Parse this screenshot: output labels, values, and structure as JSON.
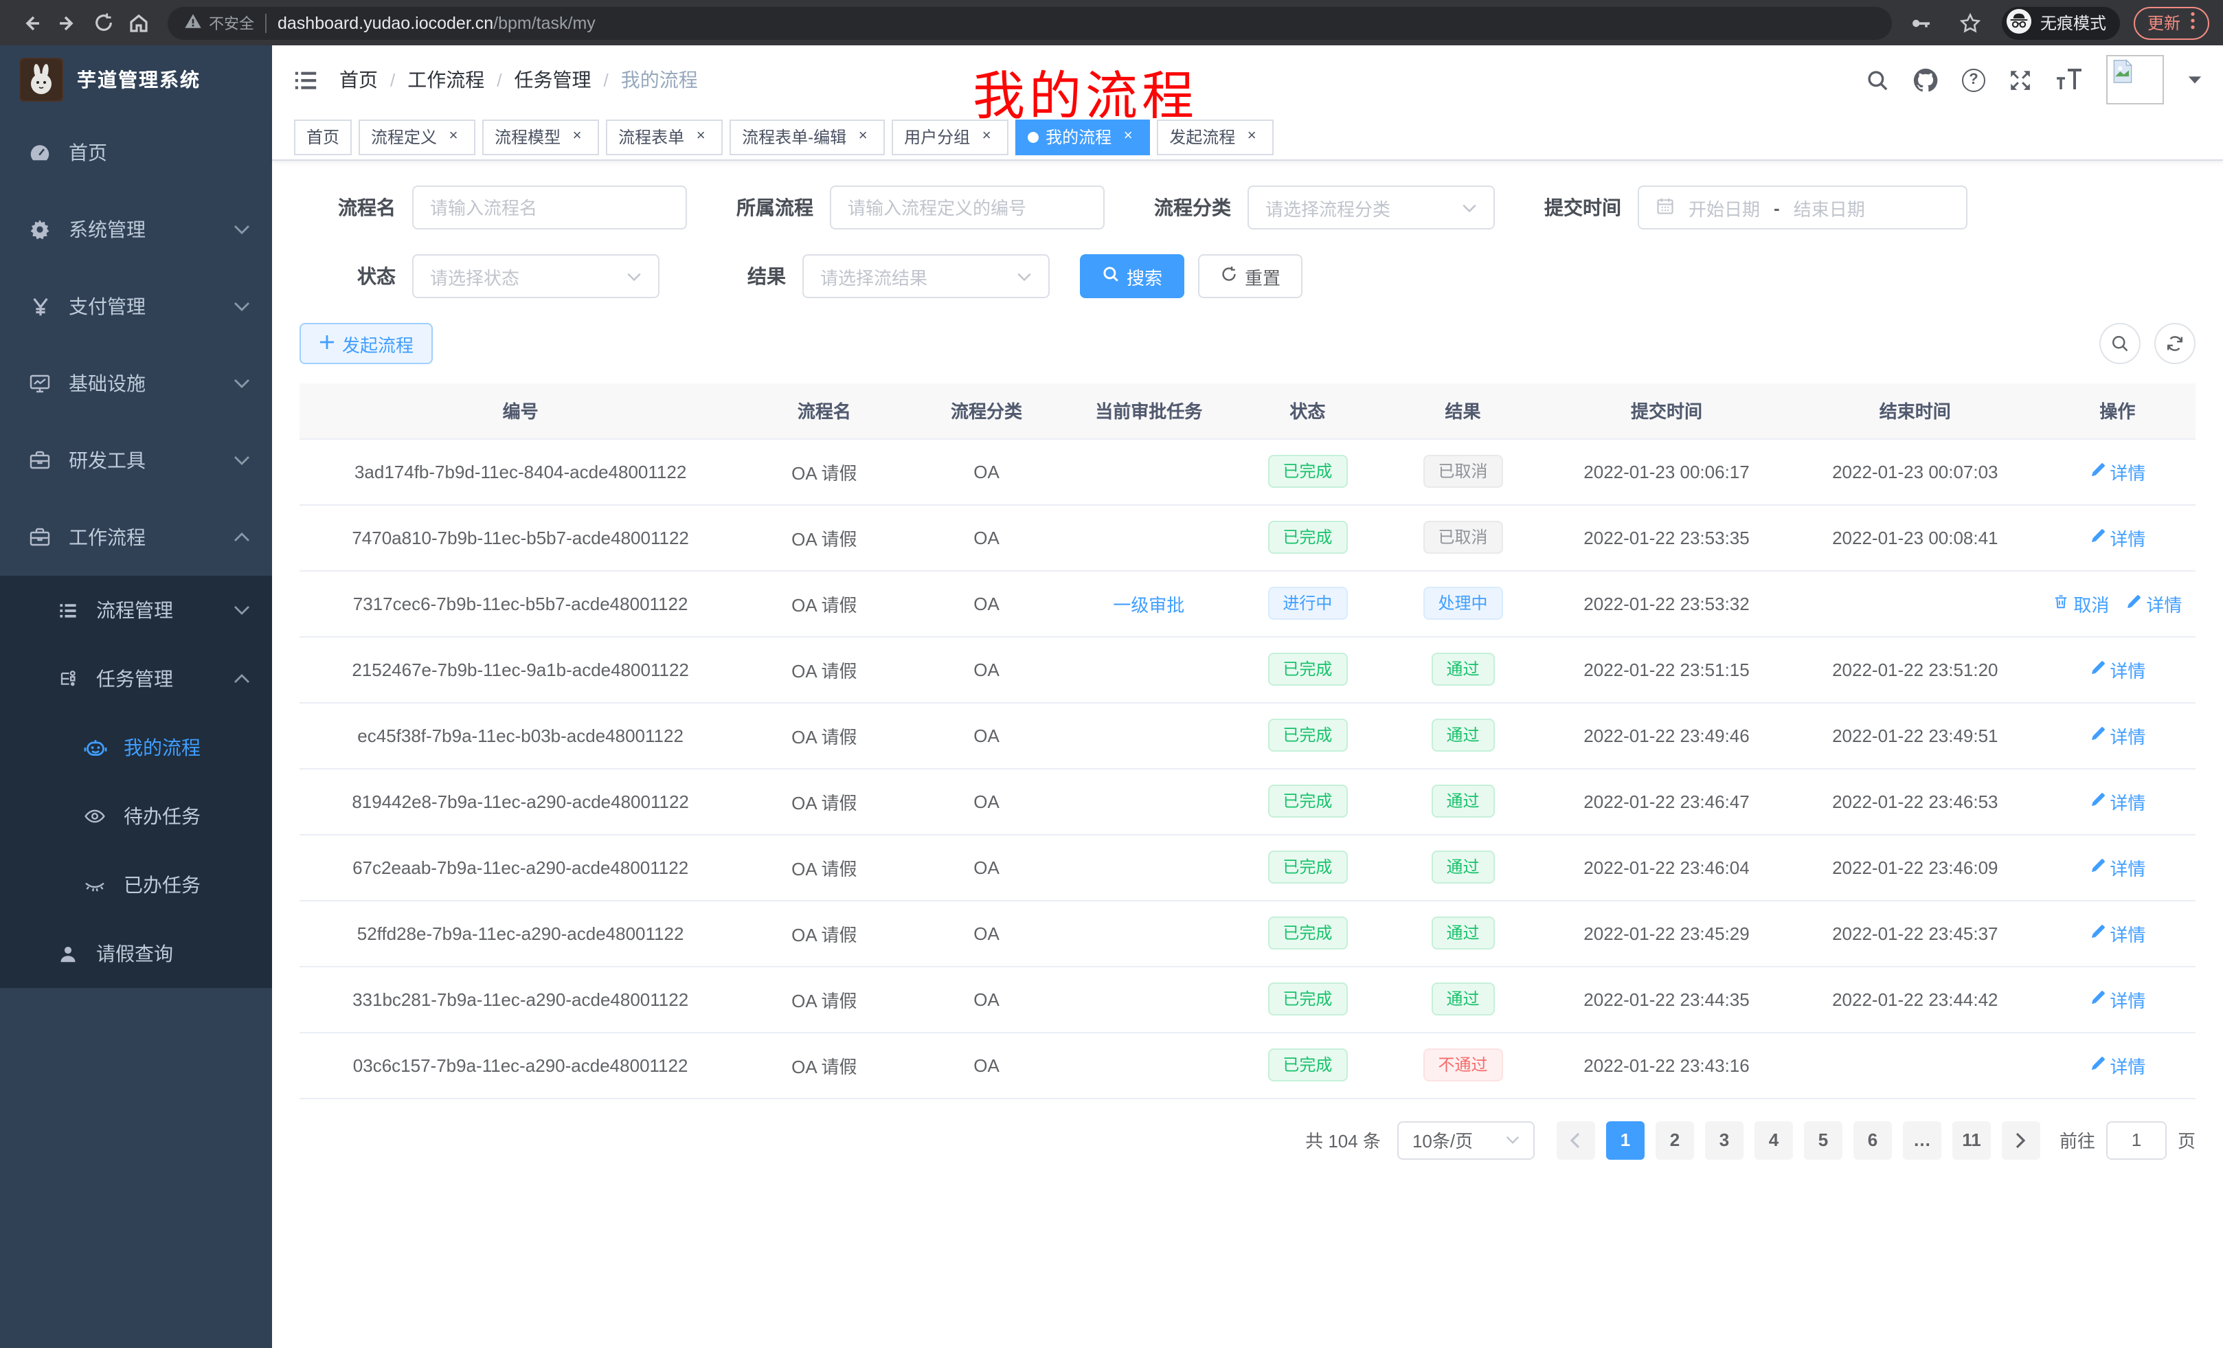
{
  "browser": {
    "security_label": "不安全",
    "url_host": "dashboard.yudao.iocoder.cn",
    "url_path": "/bpm/task/my",
    "incognito_label": "无痕模式",
    "update_label": "更新"
  },
  "sidebar": {
    "title": "芋道管理系统",
    "items": [
      {
        "key": "home",
        "label": "首页",
        "icon": "dashboard-icon",
        "level": 1,
        "chevron": "",
        "active": false
      },
      {
        "key": "system",
        "label": "系统管理",
        "icon": "gear-icon",
        "level": 1,
        "chevron": "down",
        "active": false
      },
      {
        "key": "payment",
        "label": "支付管理",
        "icon": "yen-icon",
        "level": 1,
        "chevron": "down",
        "active": false
      },
      {
        "key": "infra",
        "label": "基础设施",
        "icon": "monitor-icon",
        "level": 1,
        "chevron": "down",
        "active": false
      },
      {
        "key": "devtools",
        "label": "研发工具",
        "icon": "toolbox-icon",
        "level": 1,
        "chevron": "down",
        "active": false
      },
      {
        "key": "workflow",
        "label": "工作流程",
        "icon": "briefcase-icon",
        "level": 1,
        "chevron": "up",
        "active": false
      },
      {
        "key": "process-mgmt",
        "label": "流程管理",
        "icon": "list-icon",
        "level": 2,
        "chevron": "down",
        "active": false
      },
      {
        "key": "task-mgmt",
        "label": "任务管理",
        "icon": "flow-icon",
        "level": 2,
        "chevron": "up",
        "active": false
      },
      {
        "key": "my-process",
        "label": "我的流程",
        "icon": "robot-icon",
        "level": 3,
        "chevron": "",
        "active": true
      },
      {
        "key": "todo-tasks",
        "label": "待办任务",
        "icon": "eye-icon",
        "level": 3,
        "chevron": "",
        "active": false
      },
      {
        "key": "done-tasks",
        "label": "已办任务",
        "icon": "eye-closed-icon",
        "level": 3,
        "chevron": "",
        "active": false
      },
      {
        "key": "leave-query",
        "label": "请假查询",
        "icon": "user-icon",
        "level": 2,
        "chevron": "",
        "active": false
      }
    ]
  },
  "navbar": {
    "breadcrumb": [
      "首页",
      "工作流程",
      "任务管理",
      "我的流程"
    ],
    "annotation": "我的流程"
  },
  "tabs": [
    {
      "label": "首页",
      "closable": false,
      "active": false
    },
    {
      "label": "流程定义",
      "closable": true,
      "active": false
    },
    {
      "label": "流程模型",
      "closable": true,
      "active": false
    },
    {
      "label": "流程表单",
      "closable": true,
      "active": false
    },
    {
      "label": "流程表单-编辑",
      "closable": true,
      "active": false
    },
    {
      "label": "用户分组",
      "closable": true,
      "active": false
    },
    {
      "label": "我的流程",
      "closable": true,
      "active": true
    },
    {
      "label": "发起流程",
      "closable": true,
      "active": false
    }
  ],
  "filter": {
    "name_label": "流程名",
    "name_placeholder": "请输入流程名",
    "definition_label": "所属流程",
    "definition_placeholder": "请输入流程定义的编号",
    "category_label": "流程分类",
    "category_placeholder": "请选择流程分类",
    "time_label": "提交时间",
    "start_placeholder": "开始日期",
    "range_separator": "-",
    "end_placeholder": "结束日期",
    "status_label": "状态",
    "status_placeholder": "请选择状态",
    "result_label": "结果",
    "result_placeholder": "请选择流结果",
    "search_label": "搜索",
    "reset_label": "重置"
  },
  "toolbar": {
    "create_label": "发起流程"
  },
  "table": {
    "headers": [
      "编号",
      "流程名",
      "流程分类",
      "当前审批任务",
      "状态",
      "结果",
      "提交时间",
      "结束时间",
      "操作"
    ],
    "rows": [
      {
        "id": "3ad174fb-7b9d-11ec-8404-acde48001122",
        "name": "OA 请假",
        "category": "OA",
        "task": "",
        "status": {
          "label": "已完成",
          "type": "success"
        },
        "result": {
          "label": "已取消",
          "type": "info"
        },
        "submit_time": "2022-01-23 00:06:17",
        "end_time": "2022-01-23 00:07:03",
        "actions": [
          {
            "label": "详情",
            "icon": "edit-icon"
          }
        ]
      },
      {
        "id": "7470a810-7b9b-11ec-b5b7-acde48001122",
        "name": "OA 请假",
        "category": "OA",
        "task": "",
        "status": {
          "label": "已完成",
          "type": "success"
        },
        "result": {
          "label": "已取消",
          "type": "info"
        },
        "submit_time": "2022-01-22 23:53:35",
        "end_time": "2022-01-23 00:08:41",
        "actions": [
          {
            "label": "详情",
            "icon": "edit-icon"
          }
        ]
      },
      {
        "id": "7317cec6-7b9b-11ec-b5b7-acde48001122",
        "name": "OA 请假",
        "category": "OA",
        "task": "一级审批",
        "status": {
          "label": "进行中",
          "type": "primary"
        },
        "result": {
          "label": "处理中",
          "type": "primary"
        },
        "submit_time": "2022-01-22 23:53:32",
        "end_time": "",
        "actions": [
          {
            "label": "取消",
            "icon": "trash-icon"
          },
          {
            "label": "详情",
            "icon": "edit-icon"
          }
        ]
      },
      {
        "id": "2152467e-7b9b-11ec-9a1b-acde48001122",
        "name": "OA 请假",
        "category": "OA",
        "task": "",
        "status": {
          "label": "已完成",
          "type": "success"
        },
        "result": {
          "label": "通过",
          "type": "success"
        },
        "submit_time": "2022-01-22 23:51:15",
        "end_time": "2022-01-22 23:51:20",
        "actions": [
          {
            "label": "详情",
            "icon": "edit-icon"
          }
        ]
      },
      {
        "id": "ec45f38f-7b9a-11ec-b03b-acde48001122",
        "name": "OA 请假",
        "category": "OA",
        "task": "",
        "status": {
          "label": "已完成",
          "type": "success"
        },
        "result": {
          "label": "通过",
          "type": "success"
        },
        "submit_time": "2022-01-22 23:49:46",
        "end_time": "2022-01-22 23:49:51",
        "actions": [
          {
            "label": "详情",
            "icon": "edit-icon"
          }
        ]
      },
      {
        "id": "819442e8-7b9a-11ec-a290-acde48001122",
        "name": "OA 请假",
        "category": "OA",
        "task": "",
        "status": {
          "label": "已完成",
          "type": "success"
        },
        "result": {
          "label": "通过",
          "type": "success"
        },
        "submit_time": "2022-01-22 23:46:47",
        "end_time": "2022-01-22 23:46:53",
        "actions": [
          {
            "label": "详情",
            "icon": "edit-icon"
          }
        ]
      },
      {
        "id": "67c2eaab-7b9a-11ec-a290-acde48001122",
        "name": "OA 请假",
        "category": "OA",
        "task": "",
        "status": {
          "label": "已完成",
          "type": "success"
        },
        "result": {
          "label": "通过",
          "type": "success"
        },
        "submit_time": "2022-01-22 23:46:04",
        "end_time": "2022-01-22 23:46:09",
        "actions": [
          {
            "label": "详情",
            "icon": "edit-icon"
          }
        ]
      },
      {
        "id": "52ffd28e-7b9a-11ec-a290-acde48001122",
        "name": "OA 请假",
        "category": "OA",
        "task": "",
        "status": {
          "label": "已完成",
          "type": "success"
        },
        "result": {
          "label": "通过",
          "type": "success"
        },
        "submit_time": "2022-01-22 23:45:29",
        "end_time": "2022-01-22 23:45:37",
        "actions": [
          {
            "label": "详情",
            "icon": "edit-icon"
          }
        ]
      },
      {
        "id": "331bc281-7b9a-11ec-a290-acde48001122",
        "name": "OA 请假",
        "category": "OA",
        "task": "",
        "status": {
          "label": "已完成",
          "type": "success"
        },
        "result": {
          "label": "通过",
          "type": "success"
        },
        "submit_time": "2022-01-22 23:44:35",
        "end_time": "2022-01-22 23:44:42",
        "actions": [
          {
            "label": "详情",
            "icon": "edit-icon"
          }
        ]
      },
      {
        "id": "03c6c157-7b9a-11ec-a290-acde48001122",
        "name": "OA 请假",
        "category": "OA",
        "task": "",
        "status": {
          "label": "已完成",
          "type": "success"
        },
        "result": {
          "label": "不通过",
          "type": "danger"
        },
        "submit_time": "2022-01-22 23:43:16",
        "end_time": "",
        "actions": [
          {
            "label": "详情",
            "icon": "edit-icon"
          }
        ]
      }
    ]
  },
  "pagination": {
    "total_label": "共 104 条",
    "page_size_label": "10条/页",
    "pages": [
      "1",
      "2",
      "3",
      "4",
      "5",
      "6",
      "…",
      "11"
    ],
    "active_page": "1",
    "goto_label": "前往",
    "goto_value": "1",
    "unit_label": "页"
  }
}
